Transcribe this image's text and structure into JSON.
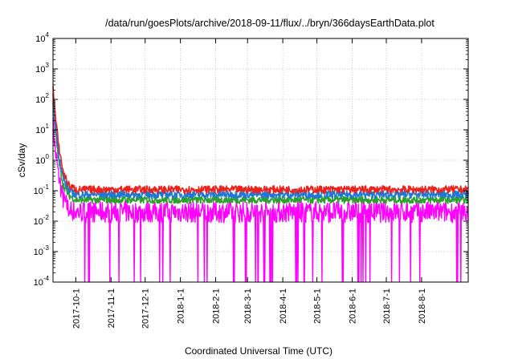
{
  "chart_data": {
    "type": "line",
    "title": "/data/run/goesPlots/archive/2018-09-11/flux/../bryn/366daysEarthData.plot",
    "xlabel": "Coordinated Universal Time (UTC)",
    "ylabel": "cSv/day",
    "yscale": "log",
    "ylim": [
      0.0001,
      10000
    ],
    "xlim": [
      "2017-09-11",
      "2018-09-11"
    ],
    "grid": true,
    "y_ticks": [
      {
        "base": "10",
        "exp": "-4"
      },
      {
        "base": "10",
        "exp": "-3"
      },
      {
        "base": "10",
        "exp": "-2"
      },
      {
        "base": "10",
        "exp": "-1"
      },
      {
        "base": "10",
        "exp": "0"
      },
      {
        "base": "10",
        "exp": "1"
      },
      {
        "base": "10",
        "exp": "2"
      },
      {
        "base": "10",
        "exp": "3"
      },
      {
        "base": "10",
        "exp": "4"
      }
    ],
    "x_ticks": [
      "2017-10-1",
      "2017-11-1",
      "2017-12-1",
      "2018-1-1",
      "2018-2-1",
      "2018-3-1",
      "2018-4-1",
      "2018-5-1",
      "2018-6-1",
      "2018-7-1",
      "2018-8-1"
    ],
    "series": [
      {
        "color": "#e8221c",
        "peak": 300,
        "baseline": 0.11,
        "x": [
          "2017-09-11",
          "2017-09-13",
          "2017-09-16",
          "2017-09-20",
          "2017-09-25",
          "2017-10-01",
          "2018-09-11"
        ],
        "values": [
          300,
          30,
          3,
          0.4,
          0.15,
          0.11,
          0.11
        ]
      },
      {
        "color": "#1f77d4",
        "peak": 130,
        "baseline": 0.075,
        "x": [
          "2017-09-11",
          "2017-09-13",
          "2017-09-16",
          "2017-09-20",
          "2017-09-25",
          "2017-10-01",
          "2018-09-11"
        ],
        "values": [
          130,
          15,
          1.5,
          0.25,
          0.1,
          0.075,
          0.075
        ]
      },
      {
        "color": "#2ca02c",
        "peak": 90,
        "baseline": 0.05,
        "x": [
          "2017-09-11",
          "2017-09-13",
          "2017-09-16",
          "2017-09-20",
          "2017-09-25",
          "2017-10-01",
          "2018-09-11"
        ],
        "values": [
          90,
          10,
          1,
          0.15,
          0.07,
          0.05,
          0.05
        ]
      },
      {
        "color": "#ff00ff",
        "peak": 20,
        "baseline": 0.02,
        "dropout_floor": 0.0001,
        "x": [
          "2017-09-11",
          "2017-09-13",
          "2017-09-16",
          "2017-09-20",
          "2017-09-25",
          "2017-10-01",
          "2018-09-11"
        ],
        "values": [
          20,
          2,
          0.3,
          0.05,
          0.025,
          0.02,
          0.02
        ]
      }
    ]
  }
}
